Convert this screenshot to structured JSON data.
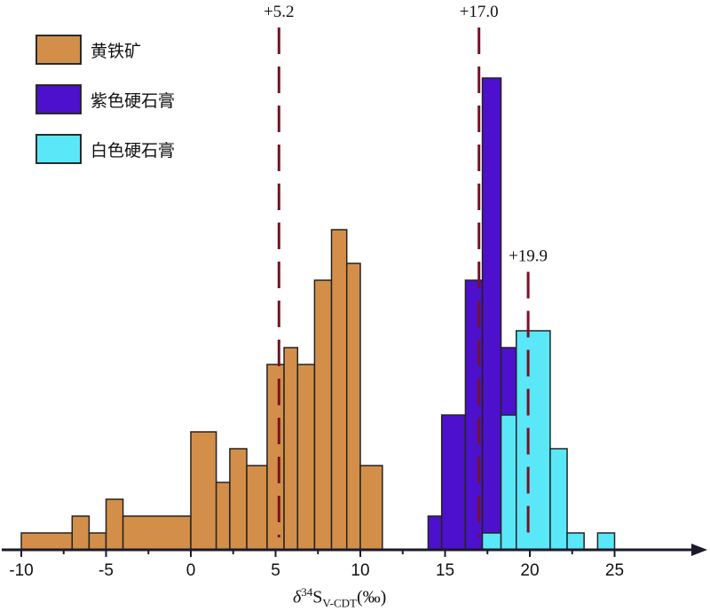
{
  "chart_data": {
    "type": "histogram",
    "x_axis": {
      "range": [
        -11,
        29
      ],
      "ticks": [
        -10,
        -5,
        0,
        5,
        10,
        15,
        20,
        25
      ],
      "tick_labels": [
        "-10",
        "-5",
        "0",
        "5",
        "10",
        "15",
        "20",
        "25"
      ],
      "minor_ticks": [
        -7.5,
        -2.5,
        2.5,
        7.5,
        12.5,
        17.5,
        22.5
      ],
      "label_prefix": "δ",
      "label_sup": "34",
      "label_main": "S",
      "label_sub": "V-CDT",
      "label_suffix": "(‰)"
    },
    "y_axis": {
      "range": [
        0,
        15
      ],
      "visible": false
    },
    "grid": false,
    "legend_position": "top-left",
    "series": [
      {
        "name": "黄铁矿",
        "color": "#d38f4a",
        "bins": [
          [
            -10,
            -7,
            1
          ],
          [
            -7,
            -6,
            2
          ],
          [
            -6,
            -5,
            1
          ],
          [
            -5,
            -4,
            3
          ],
          [
            -4,
            0,
            2
          ],
          [
            0,
            1.5,
            7
          ],
          [
            1.5,
            2.3,
            4
          ],
          [
            2.3,
            3.3,
            6
          ],
          [
            3.3,
            4.5,
            5
          ],
          [
            4.5,
            5.5,
            11
          ],
          [
            5.5,
            6.3,
            12
          ],
          [
            6.3,
            7.3,
            11
          ],
          [
            7.3,
            8.3,
            16
          ],
          [
            8.3,
            9.2,
            19
          ],
          [
            9.2,
            10,
            17
          ],
          [
            10,
            11.3,
            5
          ]
        ]
      },
      {
        "name": "紫色硬石膏",
        "color": "#4d10cc",
        "bins": [
          [
            14,
            14.8,
            2
          ],
          [
            14.8,
            16.2,
            8
          ],
          [
            16.2,
            17.2,
            16
          ],
          [
            17.2,
            18.3,
            28
          ],
          [
            18.3,
            19.2,
            12
          ],
          [
            19.2,
            19.5,
            4
          ]
        ]
      },
      {
        "name": "白色硬石膏",
        "color": "#5ae8f8",
        "bins": [
          [
            17.2,
            18.3,
            1
          ],
          [
            18.3,
            19.2,
            8
          ],
          [
            19.2,
            21.2,
            13
          ],
          [
            21.2,
            22.2,
            6
          ],
          [
            22.2,
            23.2,
            1
          ],
          [
            24,
            25,
            1
          ]
        ]
      }
    ],
    "reference_lines": [
      {
        "x": 5.2,
        "label": "+5.2",
        "top": 31
      },
      {
        "x": 17.0,
        "label": "+17.0",
        "top": 31
      },
      {
        "x": 19.9,
        "label": "+19.9",
        "top": 16.5
      }
    ]
  }
}
